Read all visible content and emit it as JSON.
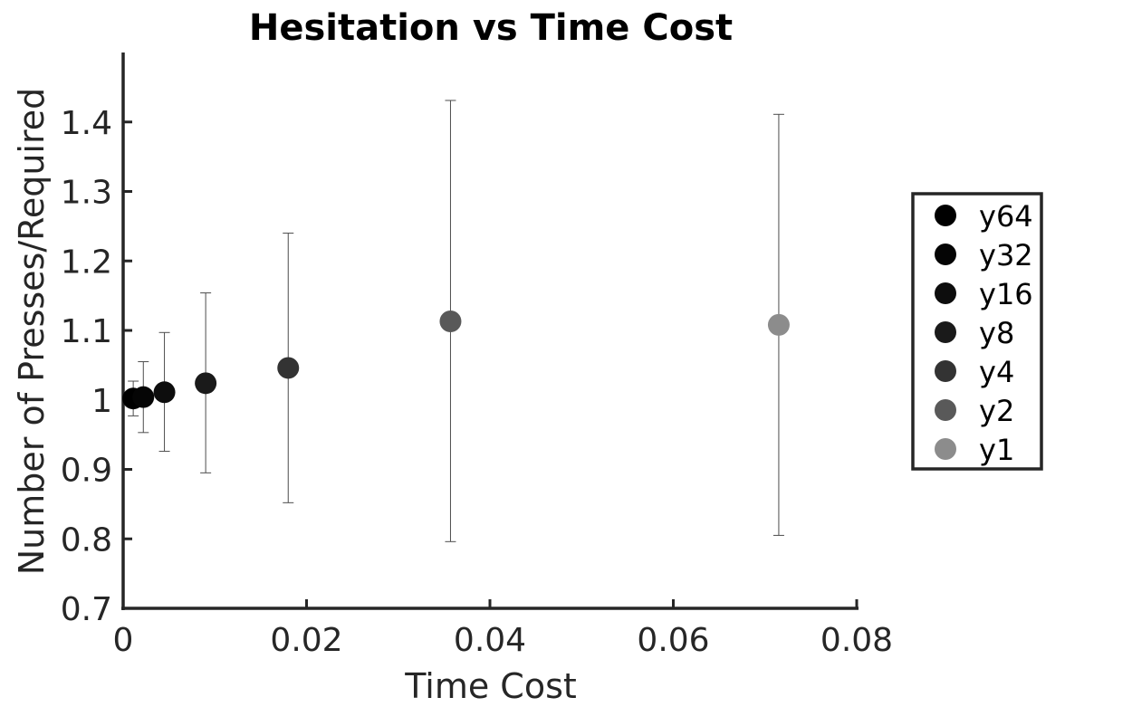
{
  "chart_data": {
    "type": "scatter",
    "title": "Hesitation vs Time Cost",
    "xlabel": "Time Cost",
    "ylabel": "Number of Presses/Required",
    "xlim": [
      0,
      0.08
    ],
    "ylim": [
      0.7,
      1.5
    ],
    "xticks": [
      0,
      0.02,
      0.04,
      0.06,
      0.08
    ],
    "xtick_labels": [
      "0",
      "0.02",
      "0.04",
      "0.06",
      "0.08"
    ],
    "yticks": [
      0.7,
      0.8,
      0.9,
      1.0,
      1.1,
      1.2,
      1.3,
      1.4
    ],
    "ytick_labels": [
      "0.7",
      "0.8",
      "0.9",
      "1",
      "1.1",
      "1.2",
      "1.3",
      "1.4"
    ],
    "grid": false,
    "legend_position": "right",
    "series": [
      {
        "name": "y64",
        "color": "#000000",
        "x": 0.0011,
        "y": 1.002,
        "err_low": 0.977,
        "err_high": 1.027
      },
      {
        "name": "y32",
        "color": "#050505",
        "x": 0.0022,
        "y": 1.004,
        "err_low": 0.953,
        "err_high": 1.055
      },
      {
        "name": "y16",
        "color": "#0d0d0d",
        "x": 0.0045,
        "y": 1.011,
        "err_low": 0.926,
        "err_high": 1.097
      },
      {
        "name": "y8",
        "color": "#1a1a1a",
        "x": 0.009,
        "y": 1.024,
        "err_low": 0.895,
        "err_high": 1.154
      },
      {
        "name": "y4",
        "color": "#333333",
        "x": 0.018,
        "y": 1.046,
        "err_low": 0.852,
        "err_high": 1.24
      },
      {
        "name": "y2",
        "color": "#595959",
        "x": 0.0357,
        "y": 1.113,
        "err_low": 0.796,
        "err_high": 1.431
      },
      {
        "name": "y1",
        "color": "#8c8c8c",
        "x": 0.0715,
        "y": 1.108,
        "err_low": 0.805,
        "err_high": 1.411
      }
    ]
  }
}
